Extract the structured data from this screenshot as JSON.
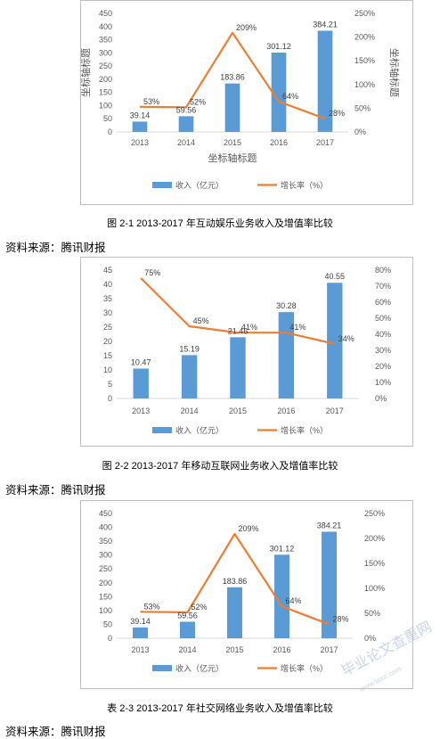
{
  "figures": [
    {
      "caption": "图 2-1    2013-2017 年互动娱乐业务收入及增值率比较",
      "source": "资料来源：腾讯财报",
      "chart_data": {
        "type": "bar",
        "categories": [
          "2013",
          "2014",
          "2015",
          "2016",
          "2017"
        ],
        "series": [
          {
            "name": "收入（亿元）",
            "type": "bar",
            "axis": "left",
            "values": [
              39.14,
              59.56,
              183.86,
              301.12,
              384.21
            ],
            "labels": [
              "39.14",
              "59.56",
              "183.86",
              "301.12",
              "384.21"
            ]
          },
          {
            "name": "增长率（%）",
            "type": "line",
            "axis": "right",
            "values": [
              53,
              52,
              209,
              64,
              28
            ],
            "labels": [
              "53%",
              "52%",
              "209%",
              "64%",
              "28%"
            ]
          }
        ],
        "xlabel": "坐标轴标题",
        "ylabel": "坐标轴标题",
        "y2label": "坐标轴标题",
        "ylim": [
          0,
          450
        ],
        "yticks": [
          "0",
          "50",
          "100",
          "150",
          "200",
          "250",
          "300",
          "350",
          "400",
          "450"
        ],
        "y2lim": [
          0,
          250
        ],
        "y2ticks": [
          "0%",
          "50%",
          "100%",
          "150%",
          "200%",
          "250%"
        ],
        "grid": false,
        "legend": "bottom"
      }
    },
    {
      "caption": "图 2-2    2013-2017 年移动互联网业务收入及增值率比较",
      "source": "资料来源：腾讯财报",
      "chart_data": {
        "type": "bar",
        "categories": [
          "2013",
          "2014",
          "2015",
          "2016",
          "2017"
        ],
        "series": [
          {
            "name": "收入（亿元）",
            "type": "bar",
            "axis": "left",
            "values": [
              10.47,
              15.19,
              21.46,
              30.28,
              40.55
            ],
            "labels": [
              "10.47",
              "15.19",
              "21.46",
              "30.28",
              "40.55"
            ]
          },
          {
            "name": "增长率（%）",
            "type": "line",
            "axis": "right",
            "values": [
              75,
              45,
              41,
              41,
              34
            ],
            "labels": [
              "75%",
              "45%",
              "41%",
              "41%",
              "34%"
            ]
          }
        ],
        "xlabel": "",
        "ylabel": "",
        "y2label": "",
        "ylim": [
          0,
          45
        ],
        "yticks": [
          "0",
          "5",
          "10",
          "15",
          "20",
          "25",
          "30",
          "35",
          "40",
          "45"
        ],
        "y2lim": [
          0,
          80
        ],
        "y2ticks": [
          "0%",
          "10%",
          "20%",
          "30%",
          "40%",
          "50%",
          "60%",
          "70%",
          "80%"
        ],
        "grid": false,
        "legend": "bottom"
      }
    },
    {
      "caption": "表 2-3    2013-2017 年社交网络业务收入及增值率比较",
      "source": "资料来源：腾讯财报",
      "chart_data": {
        "type": "bar",
        "categories": [
          "2013",
          "2014",
          "2015",
          "2016",
          "2017"
        ],
        "series": [
          {
            "name": "收入（亿元）",
            "type": "bar",
            "axis": "left",
            "values": [
              39.14,
              59.56,
              183.86,
              301.12,
              384.21
            ],
            "labels": [
              "39.14",
              "59.56",
              "183.86",
              "301.12",
              "384.21"
            ]
          },
          {
            "name": "增长率（%）",
            "type": "line",
            "axis": "right",
            "values": [
              53,
              52,
              209,
              64,
              28
            ],
            "labels": [
              "53%",
              "52%",
              "209%",
              "64%",
              "28%"
            ]
          }
        ],
        "xlabel": "",
        "ylabel": "",
        "y2label": "",
        "ylim": [
          0,
          450
        ],
        "yticks": [
          "0",
          "50",
          "100",
          "150",
          "200",
          "250",
          "300",
          "350",
          "400",
          "450"
        ],
        "y2lim": [
          0,
          250
        ],
        "y2ticks": [
          "0%",
          "50%",
          "100%",
          "150%",
          "200%",
          "250%"
        ],
        "grid": false,
        "legend": "bottom"
      }
    }
  ],
  "colors": {
    "bar": "#5b9bd5",
    "line": "#ed7d31",
    "axis_text": "#595959",
    "border": "#bfbfbf"
  },
  "watermark": {
    "text": "毕业论文查重网",
    "url": "www.lwcc.com"
  }
}
